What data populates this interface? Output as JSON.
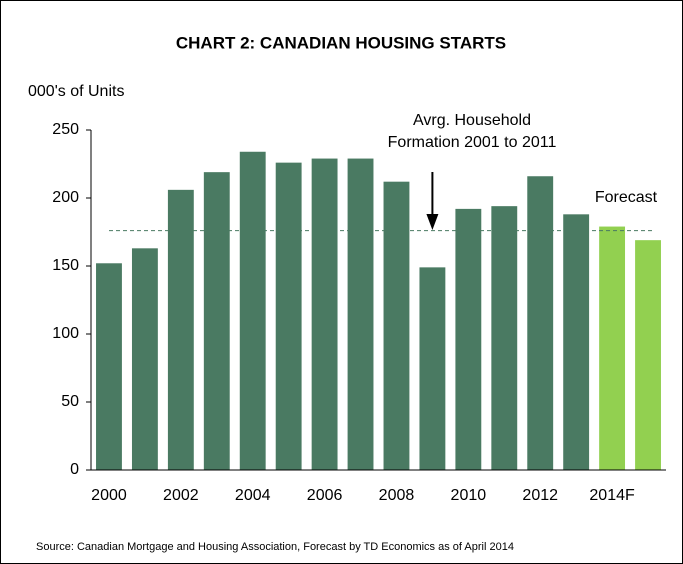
{
  "chart_data": {
    "type": "bar",
    "title": "CHART  2: CANADIAN HOUSING STARTS",
    "y_label": "000's of Units",
    "categories": [
      "2000",
      null,
      "2002",
      null,
      "2004",
      null,
      "2006",
      null,
      "2008",
      null,
      "2010",
      null,
      "2012",
      null,
      "2014F",
      null
    ],
    "values": [
      152,
      163,
      206,
      219,
      234,
      226,
      229,
      229,
      212,
      149,
      192,
      194,
      216,
      188,
      179,
      169
    ],
    "colors": [
      "#4a7a62",
      "#4a7a62",
      "#4a7a62",
      "#4a7a62",
      "#4a7a62",
      "#4a7a62",
      "#4a7a62",
      "#4a7a62",
      "#4a7a62",
      "#4a7a62",
      "#4a7a62",
      "#4a7a62",
      "#4a7a62",
      "#4a7a62",
      "#92d050",
      "#92d050"
    ],
    "ylim": [
      0,
      250
    ],
    "yticks": [
      0,
      50,
      100,
      150,
      200,
      250
    ],
    "reference_line": {
      "value": 176,
      "color": "#4a7a62",
      "label": [
        "Avrg. Household",
        "Formation 2001 to 2011"
      ]
    },
    "forecast_label": "Forecast",
    "source": "Source: Canadian Mortgage and Housing Association, Forecast by TD Economics as of April 2014"
  }
}
